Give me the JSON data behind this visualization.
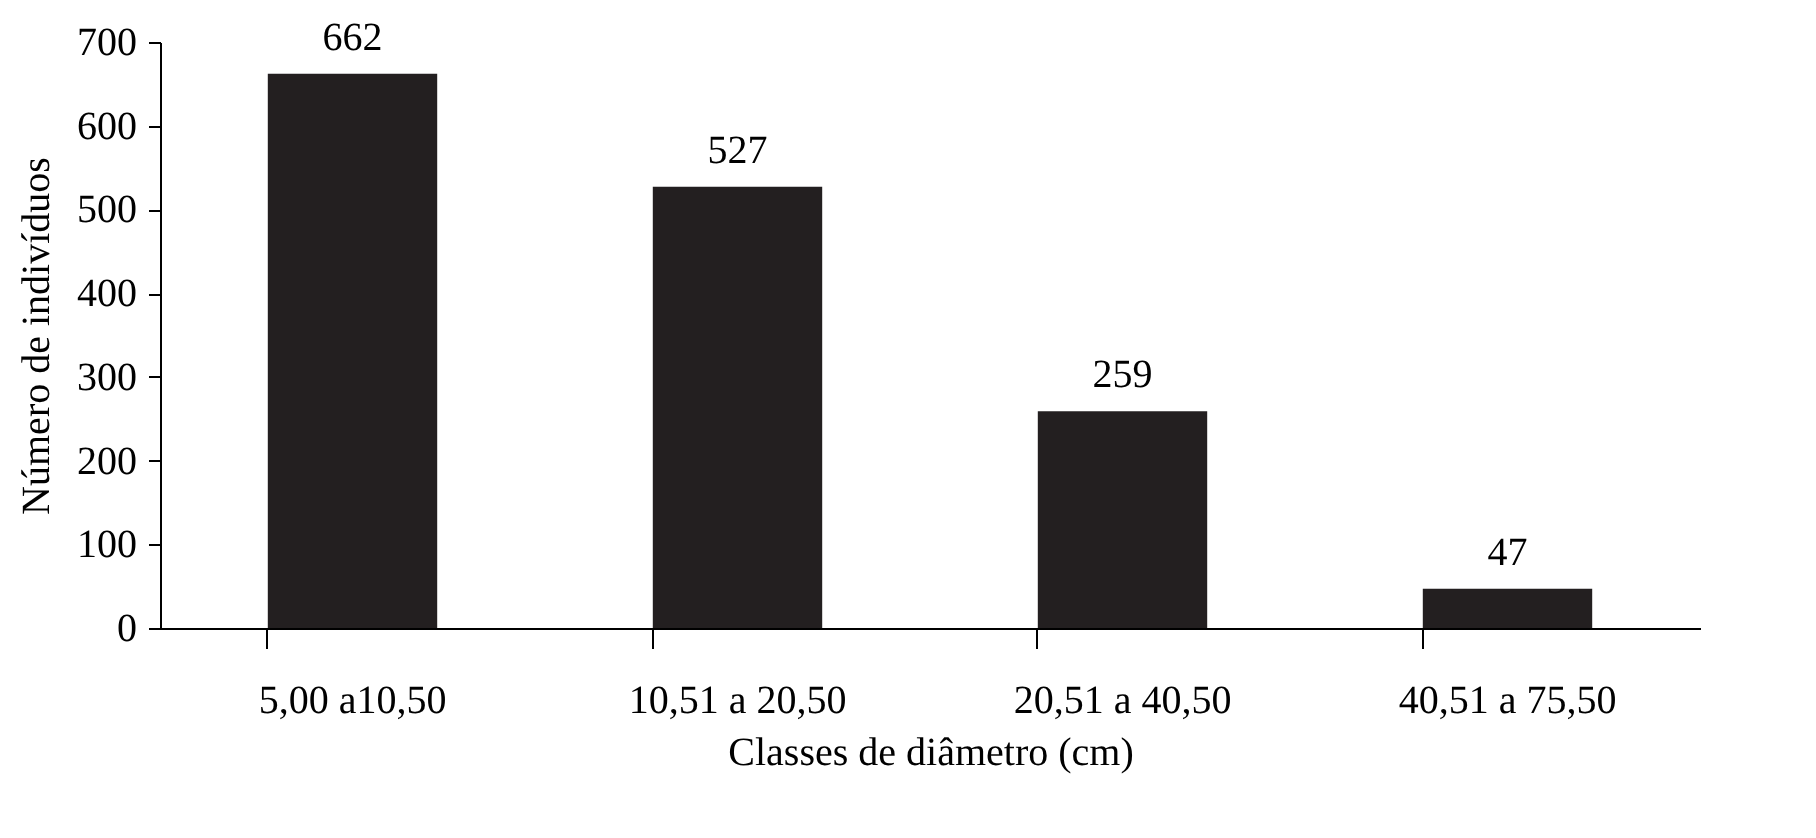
{
  "chart_data": {
    "type": "bar",
    "xlabel": "Classes de diâmetro (cm)",
    "ylabel": "Número de indivíduos",
    "categories": [
      "5,00 a10,50",
      "10,51 a 20,50",
      "20,51 a 40,50",
      "40,51 a 75,50"
    ],
    "values": [
      662,
      527,
      259,
      47
    ],
    "color": "#231f20",
    "ylim": [
      0,
      700
    ],
    "yticks": [
      0,
      100,
      200,
      300,
      400,
      500,
      600,
      700
    ],
    "grid": false,
    "data_labels": true
  }
}
